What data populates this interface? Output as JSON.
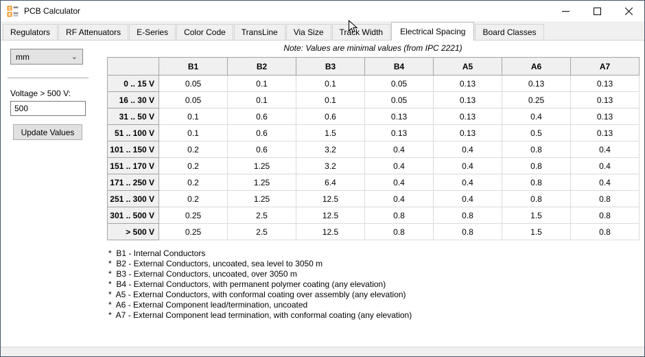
{
  "window": {
    "title": "PCB Calculator",
    "controls": [
      "minimize",
      "maximize",
      "close"
    ]
  },
  "tabs": [
    {
      "label": "Regulators",
      "active": false
    },
    {
      "label": "RF Attenuators",
      "active": false
    },
    {
      "label": "E-Series",
      "active": false
    },
    {
      "label": "Color Code",
      "active": false
    },
    {
      "label": "TransLine",
      "active": false
    },
    {
      "label": "Via Size",
      "active": false
    },
    {
      "label": "Track Width",
      "active": false
    },
    {
      "label": "Electrical Spacing",
      "active": true
    },
    {
      "label": "Board Classes",
      "active": false
    }
  ],
  "note": "Note: Values are minimal values (from IPC 2221)",
  "sidebar": {
    "unit_value": "mm",
    "unit_chevron_icon": "chevron-down",
    "voltage_label": "Voltage > 500 V:",
    "voltage_value": "500",
    "update_button_label": "Update Values"
  },
  "spacing_table": {
    "columns": [
      "B1",
      "B2",
      "B3",
      "B4",
      "A5",
      "A6",
      "A7"
    ],
    "rows": [
      {
        "label": "0 .. 15 V",
        "values": [
          "0.05",
          "0.1",
          "0.1",
          "0.05",
          "0.13",
          "0.13",
          "0.13"
        ]
      },
      {
        "label": "16 .. 30 V",
        "values": [
          "0.05",
          "0.1",
          "0.1",
          "0.05",
          "0.13",
          "0.25",
          "0.13"
        ]
      },
      {
        "label": "31 .. 50 V",
        "values": [
          "0.1",
          "0.6",
          "0.6",
          "0.13",
          "0.13",
          "0.4",
          "0.13"
        ]
      },
      {
        "label": "51 .. 100 V",
        "values": [
          "0.1",
          "0.6",
          "1.5",
          "0.13",
          "0.13",
          "0.5",
          "0.13"
        ]
      },
      {
        "label": "101 .. 150 V",
        "values": [
          "0.2",
          "0.6",
          "3.2",
          "0.4",
          "0.4",
          "0.8",
          "0.4"
        ]
      },
      {
        "label": "151 .. 170 V",
        "values": [
          "0.2",
          "1.25",
          "3.2",
          "0.4",
          "0.4",
          "0.8",
          "0.4"
        ]
      },
      {
        "label": "171 .. 250 V",
        "values": [
          "0.2",
          "1.25",
          "6.4",
          "0.4",
          "0.4",
          "0.8",
          "0.4"
        ]
      },
      {
        "label": "251 .. 300 V",
        "values": [
          "0.2",
          "1.25",
          "12.5",
          "0.4",
          "0.4",
          "0.8",
          "0.8"
        ]
      },
      {
        "label": "301 .. 500 V",
        "values": [
          "0.25",
          "2.5",
          "12.5",
          "0.8",
          "0.8",
          "1.5",
          "0.8"
        ]
      },
      {
        "label": "> 500 V",
        "values": [
          "0.25",
          "2.5",
          "12.5",
          "0.8",
          "0.8",
          "1.5",
          "0.8"
        ]
      }
    ]
  },
  "footnotes": [
    "*  B1 - Internal Conductors",
    "*  B2 - External Conductors, uncoated, sea level to 3050 m",
    "*  B3 - External Conductors, uncoated, over 3050 m",
    "*  B4 - External Conductors, with permanent polymer coating (any elevation)",
    "*  A5 - External Conductors, with conformal coating over assembly (any elevation)",
    "*  A6 - External Component lead/termination, uncoated",
    "*  A7 - External Component lead termination, with conformal coating (any elevation)"
  ],
  "colors": {
    "window_border": "#435568",
    "tab_bg": "#f0f0f0",
    "header_cell_bg": "#f0f0f0",
    "grid_label_border": "#a3a3a3",
    "grid_data_border": "#dadada",
    "icon_orange": "#f1921e",
    "icon_gray": "#8c8c8c"
  }
}
